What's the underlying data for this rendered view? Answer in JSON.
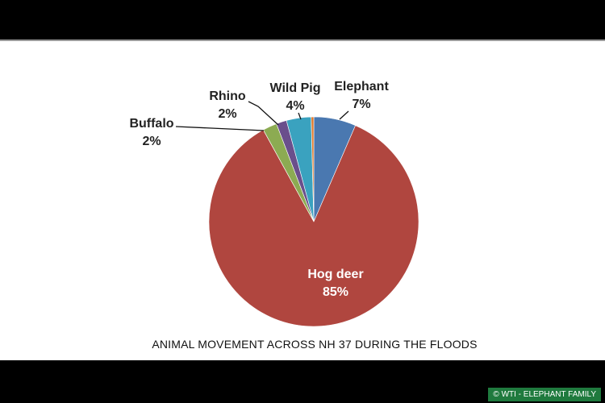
{
  "chart_data": {
    "type": "pie",
    "title": "ANIMAL MOVEMENT ACROSS NH 37 DURING THE FLOODS",
    "slices": [
      {
        "label": "Elephant",
        "value_label": "7%",
        "value": 6.5,
        "color": "#4a78b0"
      },
      {
        "label": "Hog deer",
        "value_label": "85%",
        "value": 85.5,
        "color": "#b0463f"
      },
      {
        "label": "Buffalo",
        "value_label": "2%",
        "value": 2.2,
        "color": "#8cab52"
      },
      {
        "label": "Rhino",
        "value_label": "2%",
        "value": 1.6,
        "color": "#6a4f8c"
      },
      {
        "label": "Wild Pig",
        "value_label": "4%",
        "value": 3.8,
        "color": "#3aa2bf"
      },
      {
        "label": "",
        "value_label": "",
        "value": 0.4,
        "color": "#e07b2e"
      }
    ],
    "legend": "none"
  },
  "credit": "© WTI - ELEPHANT FAMILY"
}
